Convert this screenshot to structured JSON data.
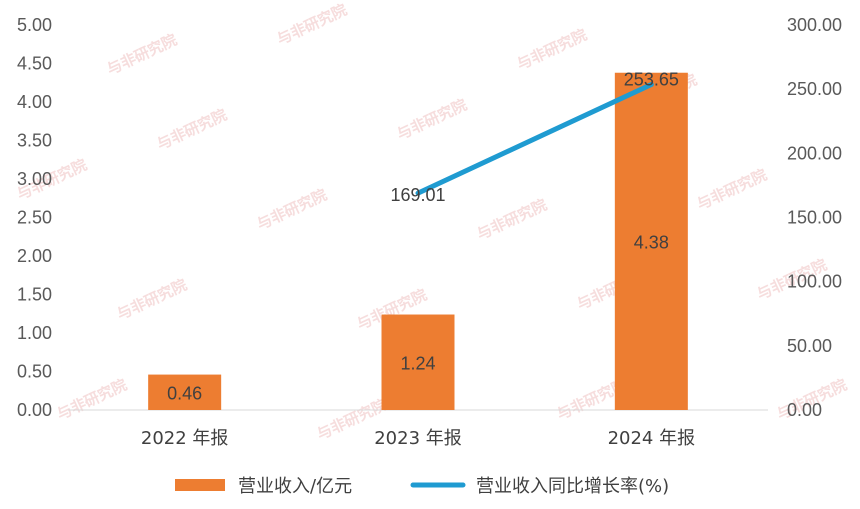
{
  "chart_data": {
    "type": "bar",
    "categories": [
      "2022 年报",
      "2023 年报",
      "2024 年报"
    ],
    "series": [
      {
        "name": "营业收入/亿元",
        "type": "bar",
        "axis": "left",
        "color": "#ED7D31",
        "values": [
          0.46,
          1.24,
          4.38
        ],
        "labels": [
          "0.46",
          "1.24",
          "4.38"
        ]
      },
      {
        "name": "营业收入同比增长率(%)",
        "type": "line",
        "axis": "right",
        "color": "#1F9BD1",
        "values": [
          null,
          169.01,
          253.65
        ],
        "labels": [
          "",
          "169.01",
          "253.65"
        ]
      }
    ],
    "left_axis": {
      "ylim": [
        0,
        5
      ],
      "ticks": [
        "0.00",
        "0.50",
        "1.00",
        "1.50",
        "2.00",
        "2.50",
        "3.00",
        "3.50",
        "4.00",
        "4.50",
        "5.00"
      ]
    },
    "right_axis": {
      "ylim": [
        0,
        300
      ],
      "ticks": [
        "0.00",
        "50.00",
        "100.00",
        "150.00",
        "200.00",
        "250.00",
        "300.00"
      ]
    },
    "legend_position": "bottom",
    "grid": false
  },
  "watermark": "与非研究院"
}
